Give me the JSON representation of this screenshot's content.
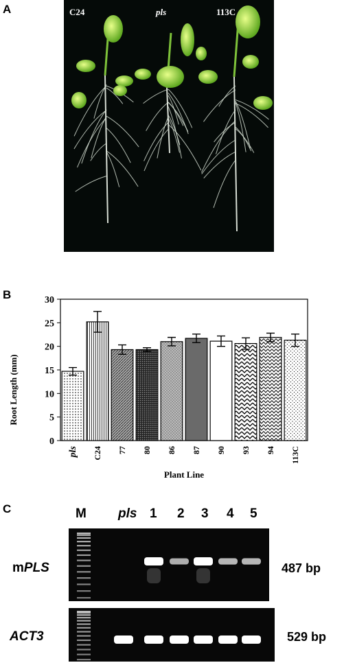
{
  "panels": {
    "a": "A",
    "b": "B",
    "c": "C"
  },
  "photo": {
    "labels": [
      "C24",
      "pls",
      "113C"
    ]
  },
  "chart_data": {
    "type": "bar",
    "categories": [
      "pls",
      "C24",
      "77",
      "80",
      "86",
      "87",
      "90",
      "93",
      "94",
      "113C"
    ],
    "values": [
      14.7,
      25.2,
      19.3,
      19.3,
      21.0,
      21.7,
      21.1,
      20.6,
      21.9,
      21.3
    ],
    "errors": [
      0.8,
      2.2,
      1.0,
      0.4,
      0.9,
      0.9,
      1.1,
      1.2,
      0.9,
      1.3
    ],
    "xlabel": "Plant Line",
    "ylabel": "Root Length (mm)",
    "ylim": [
      0,
      30
    ],
    "yticks": [
      0,
      5,
      10,
      15,
      20,
      25,
      30
    ],
    "grid": false
  },
  "gel": {
    "lanes": [
      "M",
      "pls",
      "1",
      "2",
      "3",
      "4",
      "5"
    ],
    "rows": [
      {
        "name_prefix": "m",
        "name_italic": "PLS",
        "size": "487 bp",
        "intensities": [
          0,
          0,
          1.0,
          0.5,
          1.0,
          0.55,
          0.55
        ]
      },
      {
        "name_prefix": "",
        "name_italic": "ACT3",
        "size": "529 bp",
        "intensities": [
          0,
          1.0,
          1.0,
          1.0,
          1.0,
          1.0,
          1.0
        ]
      }
    ]
  }
}
